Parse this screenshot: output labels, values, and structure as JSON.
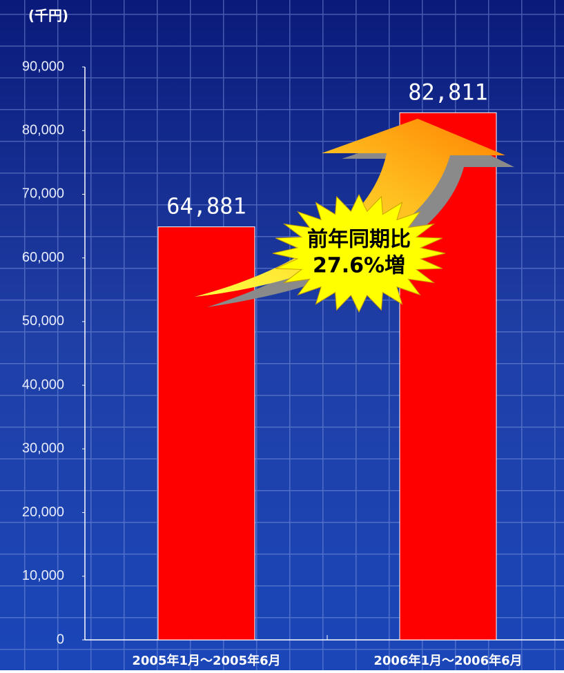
{
  "chart_data": {
    "type": "bar",
    "y_unit_label": "(千円)",
    "categories": [
      "2005年1月～2005年6月",
      "2006年1月～2006年6月"
    ],
    "values": [
      64881,
      82811
    ],
    "value_labels": [
      "64,881",
      "82,811"
    ],
    "color": "#ff0000",
    "ylim": [
      0,
      90000
    ],
    "yticks": [
      0,
      {
        "value": 10000,
        "label": "10,000"
      },
      {
        "value": 20000,
        "label": "20,000"
      },
      {
        "value": 30000,
        "label": "30,000"
      },
      {
        "value": 40000,
        "label": "40,000"
      },
      {
        "value": 50000,
        "label": "50,000"
      },
      {
        "value": 60000,
        "label": "60,000"
      },
      {
        "value": 70000,
        "label": "70,000"
      },
      {
        "value": 80000,
        "label": "80,000"
      },
      {
        "value": 90000,
        "label": "90,000"
      }
    ],
    "annotation": [
      "前年同期比",
      "27.6%増"
    ]
  }
}
